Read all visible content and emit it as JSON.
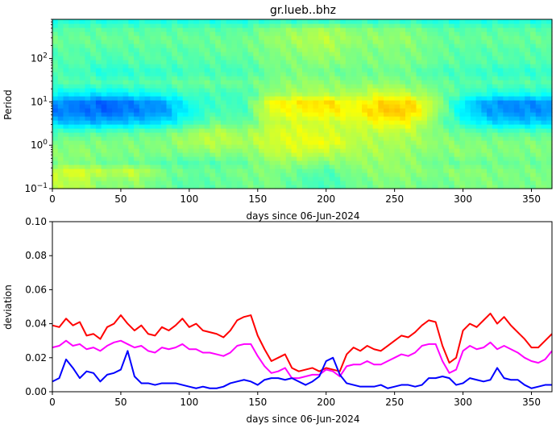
{
  "chart_data": [
    {
      "type": "heatmap",
      "title": "gr.lueb..bhz",
      "xlabel": "days since 06-Jun-2024",
      "ylabel": "Period",
      "xlim": [
        0,
        365
      ],
      "xticks": [
        0,
        50,
        100,
        150,
        200,
        250,
        300,
        350
      ],
      "ylim": [
        0.1,
        800
      ],
      "yscale": "log",
      "yticks": [
        {
          "value": 0.1,
          "base": "10",
          "exp": "−1"
        },
        {
          "value": 1,
          "base": "10",
          "exp": "0"
        },
        {
          "value": 10,
          "base": "10",
          "exp": "1"
        },
        {
          "value": 100,
          "base": "10",
          "exp": "2"
        }
      ],
      "colormap": "jet",
      "grid": false,
      "approx_periods": [
        0.15,
        0.25,
        0.4,
        0.7,
        1.2,
        2,
        3.5,
        6,
        10,
        16,
        28,
        50,
        90,
        160,
        280,
        500,
        750
      ],
      "approx_days": [
        0,
        20,
        40,
        60,
        80,
        100,
        120,
        140,
        160,
        180,
        200,
        220,
        240,
        260,
        280,
        300,
        320,
        340,
        365
      ],
      "approx_level": [
        [
          0.55,
          0.56,
          0.5,
          0.52,
          0.48,
          0.46,
          0.47,
          0.48,
          0.5,
          0.46,
          0.44,
          0.48,
          0.5,
          0.5,
          0.48,
          0.5,
          0.5,
          0.49,
          0.5
        ],
        [
          0.58,
          0.6,
          0.55,
          0.58,
          0.5,
          0.48,
          0.48,
          0.5,
          0.5,
          0.48,
          0.45,
          0.5,
          0.52,
          0.52,
          0.5,
          0.52,
          0.5,
          0.5,
          0.5
        ],
        [
          0.5,
          0.5,
          0.48,
          0.48,
          0.46,
          0.45,
          0.46,
          0.47,
          0.52,
          0.52,
          0.5,
          0.52,
          0.52,
          0.52,
          0.48,
          0.48,
          0.48,
          0.48,
          0.48
        ],
        [
          0.5,
          0.52,
          0.5,
          0.5,
          0.5,
          0.5,
          0.52,
          0.5,
          0.56,
          0.58,
          0.56,
          0.54,
          0.54,
          0.52,
          0.5,
          0.52,
          0.5,
          0.5,
          0.5
        ],
        [
          0.5,
          0.5,
          0.5,
          0.5,
          0.5,
          0.54,
          0.56,
          0.54,
          0.58,
          0.6,
          0.62,
          0.56,
          0.54,
          0.54,
          0.52,
          0.5,
          0.5,
          0.5,
          0.5
        ],
        [
          0.45,
          0.45,
          0.46,
          0.47,
          0.48,
          0.52,
          0.56,
          0.52,
          0.58,
          0.6,
          0.58,
          0.56,
          0.56,
          0.56,
          0.5,
          0.48,
          0.46,
          0.46,
          0.46
        ],
        [
          0.32,
          0.3,
          0.3,
          0.32,
          0.34,
          0.42,
          0.48,
          0.46,
          0.56,
          0.58,
          0.58,
          0.58,
          0.62,
          0.62,
          0.5,
          0.4,
          0.34,
          0.32,
          0.33
        ],
        [
          0.25,
          0.24,
          0.22,
          0.25,
          0.27,
          0.38,
          0.45,
          0.44,
          0.6,
          0.62,
          0.64,
          0.62,
          0.68,
          0.68,
          0.54,
          0.36,
          0.28,
          0.26,
          0.27
        ],
        [
          0.27,
          0.25,
          0.22,
          0.26,
          0.28,
          0.4,
          0.44,
          0.44,
          0.62,
          0.64,
          0.66,
          0.6,
          0.66,
          0.66,
          0.54,
          0.36,
          0.28,
          0.26,
          0.28
        ],
        [
          0.38,
          0.37,
          0.36,
          0.38,
          0.4,
          0.44,
          0.44,
          0.44,
          0.52,
          0.54,
          0.54,
          0.54,
          0.58,
          0.56,
          0.5,
          0.44,
          0.4,
          0.4,
          0.4
        ],
        [
          0.46,
          0.46,
          0.45,
          0.46,
          0.46,
          0.48,
          0.48,
          0.48,
          0.5,
          0.52,
          0.52,
          0.5,
          0.52,
          0.5,
          0.48,
          0.46,
          0.46,
          0.46,
          0.46
        ],
        [
          0.44,
          0.44,
          0.4,
          0.42,
          0.42,
          0.44,
          0.44,
          0.44,
          0.48,
          0.5,
          0.48,
          0.48,
          0.48,
          0.48,
          0.44,
          0.44,
          0.42,
          0.42,
          0.42
        ],
        [
          0.46,
          0.46,
          0.44,
          0.46,
          0.46,
          0.46,
          0.46,
          0.46,
          0.5,
          0.5,
          0.52,
          0.5,
          0.5,
          0.5,
          0.48,
          0.46,
          0.46,
          0.46,
          0.46
        ],
        [
          0.46,
          0.46,
          0.46,
          0.46,
          0.46,
          0.46,
          0.48,
          0.48,
          0.5,
          0.52,
          0.54,
          0.5,
          0.5,
          0.5,
          0.48,
          0.46,
          0.46,
          0.46,
          0.46
        ],
        [
          0.48,
          0.48,
          0.48,
          0.48,
          0.48,
          0.48,
          0.48,
          0.48,
          0.52,
          0.54,
          0.56,
          0.52,
          0.52,
          0.52,
          0.48,
          0.48,
          0.48,
          0.48,
          0.48
        ],
        [
          0.46,
          0.46,
          0.46,
          0.46,
          0.46,
          0.46,
          0.46,
          0.46,
          0.5,
          0.52,
          0.54,
          0.5,
          0.5,
          0.5,
          0.46,
          0.46,
          0.46,
          0.46,
          0.46
        ],
        [
          0.4,
          0.4,
          0.4,
          0.4,
          0.4,
          0.4,
          0.4,
          0.4,
          0.42,
          0.42,
          0.42,
          0.42,
          0.42,
          0.42,
          0.4,
          0.4,
          0.4,
          0.4,
          0.4
        ]
      ]
    },
    {
      "type": "line",
      "xlabel": "days since 06-Jun-2024",
      "ylabel": "deviation",
      "xlim": [
        0,
        365
      ],
      "ylim": [
        0,
        0.1
      ],
      "xticks": [
        0,
        50,
        100,
        150,
        200,
        250,
        300,
        350
      ],
      "yticks": [
        "0.00",
        "0.02",
        "0.04",
        "0.06",
        "0.08",
        "0.10"
      ],
      "grid": false,
      "x": [
        0,
        5,
        10,
        15,
        20,
        25,
        30,
        35,
        40,
        45,
        50,
        55,
        60,
        65,
        70,
        75,
        80,
        85,
        90,
        95,
        100,
        105,
        110,
        115,
        120,
        125,
        130,
        135,
        140,
        145,
        150,
        155,
        160,
        165,
        170,
        175,
        180,
        185,
        190,
        195,
        200,
        205,
        210,
        215,
        220,
        225,
        230,
        235,
        240,
        245,
        250,
        255,
        260,
        265,
        270,
        275,
        280,
        285,
        290,
        295,
        300,
        305,
        310,
        315,
        320,
        325,
        330,
        335,
        340,
        345,
        350,
        355,
        360,
        365
      ],
      "series": [
        {
          "color": "#ff0000",
          "values": [
            0.039,
            0.038,
            0.043,
            0.039,
            0.041,
            0.033,
            0.034,
            0.031,
            0.038,
            0.04,
            0.045,
            0.04,
            0.036,
            0.039,
            0.034,
            0.033,
            0.038,
            0.036,
            0.039,
            0.043,
            0.038,
            0.04,
            0.036,
            0.035,
            0.034,
            0.032,
            0.036,
            0.042,
            0.044,
            0.045,
            0.033,
            0.025,
            0.018,
            0.02,
            0.022,
            0.014,
            0.012,
            0.013,
            0.014,
            0.012,
            0.014,
            0.013,
            0.012,
            0.022,
            0.026,
            0.024,
            0.027,
            0.025,
            0.024,
            0.027,
            0.03,
            0.033,
            0.032,
            0.035,
            0.039,
            0.042,
            0.041,
            0.027,
            0.017,
            0.02,
            0.036,
            0.04,
            0.038,
            0.042,
            0.046,
            0.04,
            0.044,
            0.039,
            0.035,
            0.031,
            0.026,
            0.026,
            0.03,
            0.034
          ]
        },
        {
          "color": "#ff00ff",
          "values": [
            0.026,
            0.027,
            0.03,
            0.027,
            0.028,
            0.025,
            0.026,
            0.024,
            0.027,
            0.029,
            0.03,
            0.028,
            0.026,
            0.027,
            0.024,
            0.023,
            0.026,
            0.025,
            0.026,
            0.028,
            0.025,
            0.025,
            0.023,
            0.023,
            0.022,
            0.021,
            0.023,
            0.027,
            0.028,
            0.028,
            0.021,
            0.015,
            0.011,
            0.012,
            0.014,
            0.008,
            0.008,
            0.009,
            0.01,
            0.01,
            0.013,
            0.012,
            0.009,
            0.015,
            0.016,
            0.016,
            0.018,
            0.016,
            0.016,
            0.018,
            0.02,
            0.022,
            0.021,
            0.023,
            0.027,
            0.028,
            0.028,
            0.018,
            0.011,
            0.013,
            0.024,
            0.027,
            0.025,
            0.026,
            0.029,
            0.025,
            0.027,
            0.025,
            0.023,
            0.02,
            0.018,
            0.017,
            0.019,
            0.024
          ]
        },
        {
          "color": "#0000ff",
          "values": [
            0.006,
            0.008,
            0.019,
            0.014,
            0.008,
            0.012,
            0.011,
            0.006,
            0.01,
            0.011,
            0.013,
            0.024,
            0.009,
            0.005,
            0.005,
            0.004,
            0.005,
            0.005,
            0.005,
            0.004,
            0.003,
            0.002,
            0.003,
            0.002,
            0.002,
            0.003,
            0.005,
            0.006,
            0.007,
            0.006,
            0.004,
            0.007,
            0.008,
            0.008,
            0.007,
            0.008,
            0.006,
            0.004,
            0.006,
            0.009,
            0.018,
            0.02,
            0.01,
            0.005,
            0.004,
            0.003,
            0.003,
            0.003,
            0.004,
            0.002,
            0.003,
            0.004,
            0.004,
            0.003,
            0.004,
            0.008,
            0.008,
            0.009,
            0.008,
            0.004,
            0.005,
            0.008,
            0.007,
            0.006,
            0.007,
            0.014,
            0.008,
            0.007,
            0.007,
            0.004,
            0.002,
            0.003,
            0.004,
            0.004
          ]
        }
      ]
    }
  ]
}
